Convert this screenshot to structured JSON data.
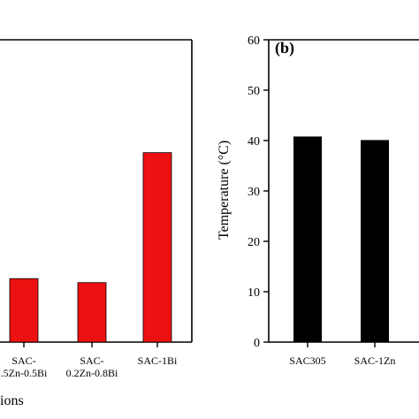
{
  "chart_data": [
    {
      "panel": "a",
      "type": "bar",
      "visible_panel_label": "",
      "categories": [
        [
          "SAC-",
          ".5Zn-0.5Bi"
        ],
        [
          "SAC-",
          "0.2Zn-0.8Bi"
        ],
        [
          "SAC-1Bi"
        ]
      ],
      "values": [
        12.6,
        11.8,
        37.6
      ],
      "xlabel": "ions",
      "bar_color": "#ee1111",
      "ylim": [
        0,
        60
      ]
    },
    {
      "panel": "b",
      "type": "bar",
      "visible_panel_label": "(b)",
      "categories": [
        [
          "SAC305"
        ],
        [
          "SAC-1Zn"
        ]
      ],
      "values": [
        40.8,
        40.1
      ],
      "ylabel": "Temperature (°C)",
      "ylim": [
        0,
        60
      ],
      "yticks": [
        "0",
        "10",
        "20",
        "30",
        "40",
        "50",
        "60"
      ],
      "bar_color": "#000000"
    }
  ]
}
